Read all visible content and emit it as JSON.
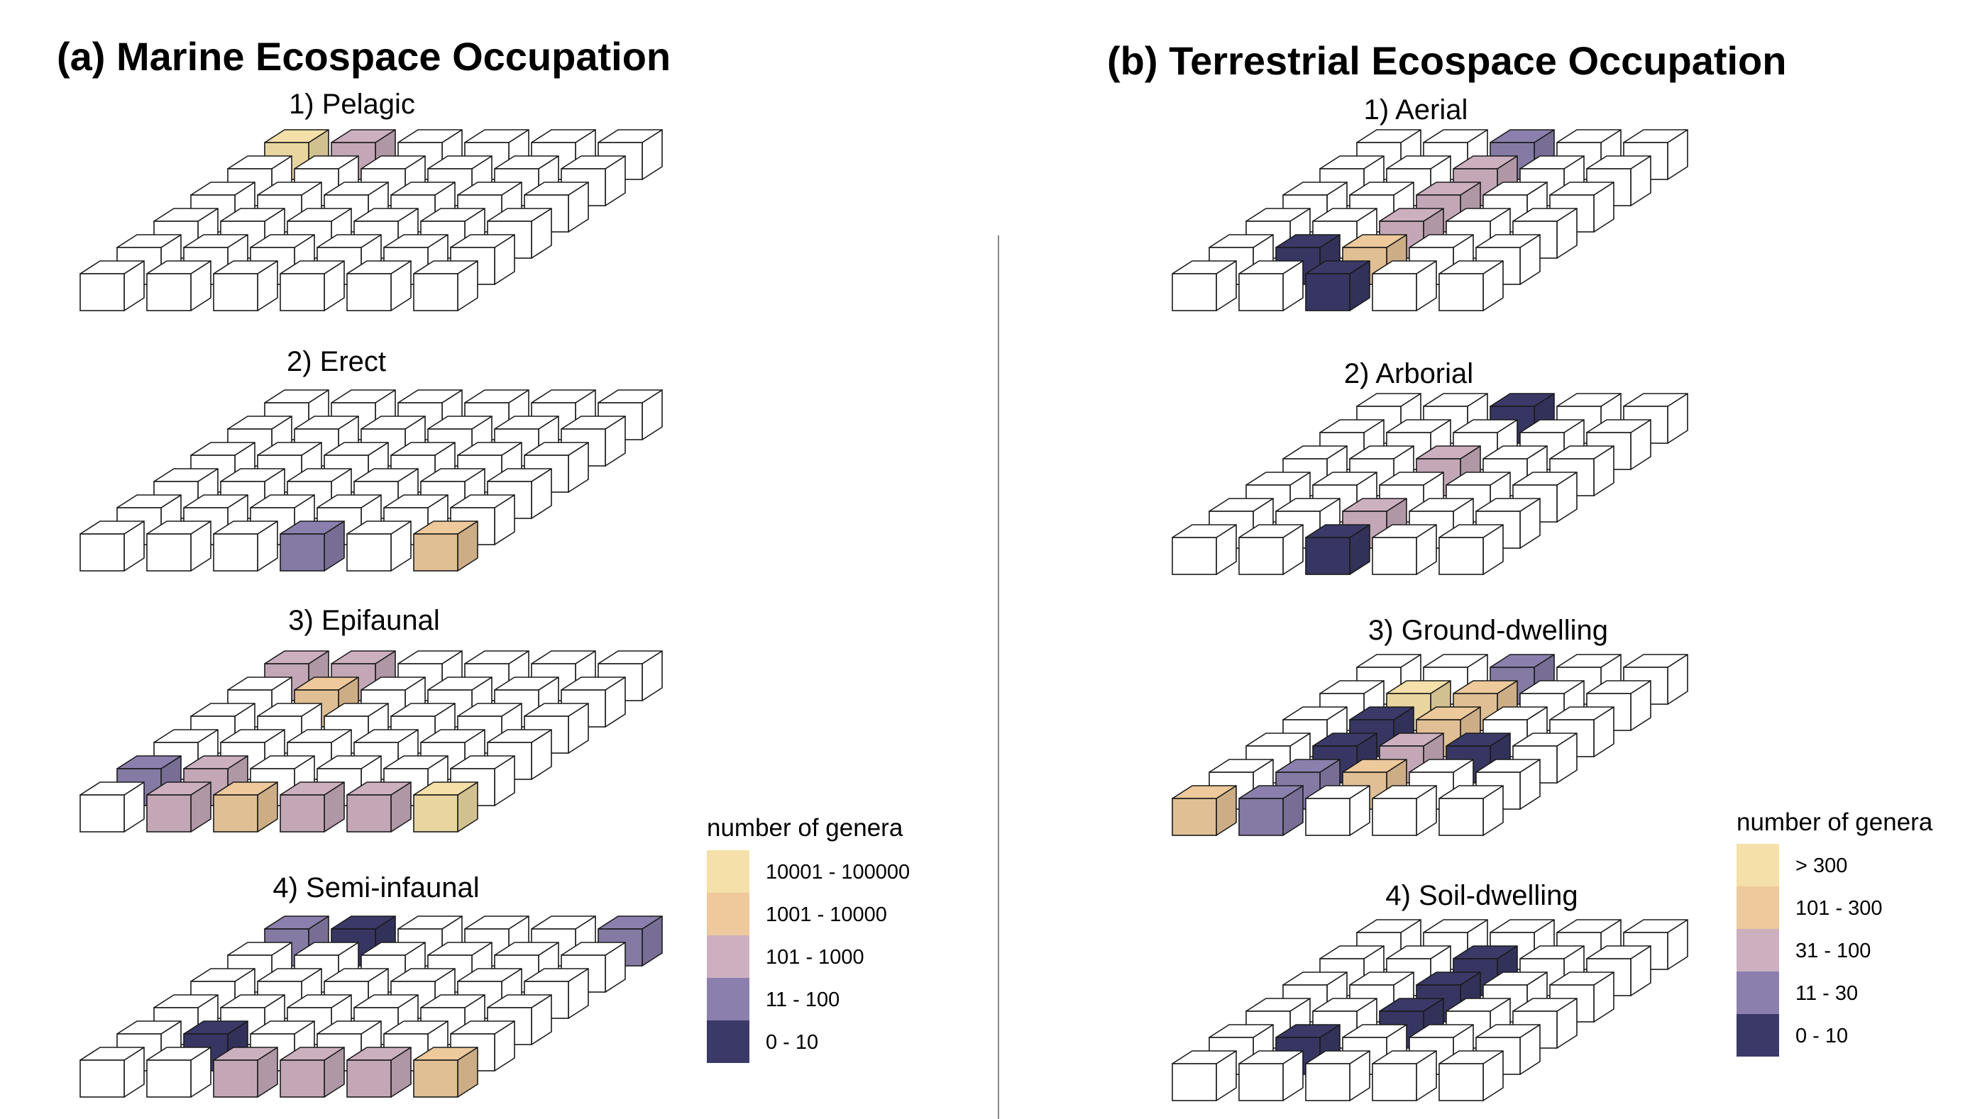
{
  "colors": {
    "c1": "#f4e0a8",
    "c2": "#edc99c",
    "c3": "#cdb0c0",
    "c4": "#8b80ad",
    "c5": "#3a3968",
    "empty": "#ffffff",
    "edge": "#1a1a1a",
    "divider": "#888888"
  },
  "panels": [
    {
      "id": "marine",
      "title": "(a) Marine Ecospace Occupation",
      "legend": {
        "title": "number of genera",
        "items": [
          {
            "label": "10001 - 100000",
            "color": "c1"
          },
          {
            "label": "1001 - 10000",
            "color": "c2"
          },
          {
            "label": "101 - 1000",
            "color": "c3"
          },
          {
            "label": "11 - 100",
            "color": "c4"
          },
          {
            "label": "0 - 10",
            "color": "c5"
          }
        ]
      },
      "grids": [
        {
          "title": "1) Pelagic",
          "rows": [
            [
              0,
              0,
              0,
              0,
              0,
              0
            ],
            [
              0,
              0,
              0,
              0,
              0,
              0
            ],
            [
              0,
              0,
              0,
              0,
              0,
              0
            ],
            [
              0,
              0,
              0,
              0,
              0,
              0
            ],
            [
              0,
              0,
              0,
              0,
              0,
              0
            ],
            [
              1,
              3,
              0,
              0,
              0,
              0
            ]
          ]
        },
        {
          "title": "2) Erect",
          "rows": [
            [
              0,
              0,
              0,
              4,
              0,
              2
            ],
            [
              0,
              0,
              0,
              0,
              0,
              0
            ],
            [
              0,
              0,
              0,
              0,
              0,
              0
            ],
            [
              0,
              0,
              0,
              0,
              0,
              0
            ],
            [
              0,
              0,
              0,
              0,
              0,
              0
            ],
            [
              0,
              0,
              0,
              0,
              0,
              0
            ]
          ]
        },
        {
          "title": "3) Epifaunal",
          "rows": [
            [
              0,
              3,
              2,
              3,
              3,
              1
            ],
            [
              4,
              3,
              0,
              0,
              0,
              0
            ],
            [
              0,
              0,
              0,
              0,
              0,
              0
            ],
            [
              0,
              0,
              0,
              0,
              0,
              0
            ],
            [
              0,
              2,
              0,
              0,
              0,
              0
            ],
            [
              3,
              3,
              0,
              0,
              0,
              0
            ]
          ]
        },
        {
          "title": "4) Semi-infaunal",
          "rows": [
            [
              0,
              0,
              3,
              3,
              3,
              2
            ],
            [
              0,
              5,
              0,
              0,
              0,
              0
            ],
            [
              0,
              0,
              0,
              0,
              0,
              0
            ],
            [
              0,
              0,
              0,
              0,
              0,
              0
            ],
            [
              0,
              0,
              0,
              0,
              0,
              0
            ],
            [
              4,
              5,
              0,
              0,
              0,
              4
            ]
          ]
        }
      ]
    },
    {
      "id": "terrestrial",
      "title": "(b) Terrestrial Ecospace Occupation",
      "legend": {
        "title": "number of genera",
        "items": [
          {
            "label": "> 300",
            "color": "c1"
          },
          {
            "label": "101 - 300",
            "color": "c2"
          },
          {
            "label": "31 - 100",
            "color": "c3"
          },
          {
            "label": "11 - 30",
            "color": "c4"
          },
          {
            "label": "0 - 10",
            "color": "c5"
          }
        ]
      },
      "grids": [
        {
          "title": "1) Aerial",
          "rows": [
            [
              0,
              0,
              5,
              0,
              0
            ],
            [
              0,
              5,
              2,
              0,
              0
            ],
            [
              0,
              0,
              3,
              0,
              0
            ],
            [
              0,
              0,
              3,
              0,
              0
            ],
            [
              0,
              0,
              3,
              0,
              0
            ],
            [
              0,
              0,
              4,
              0,
              0
            ]
          ]
        },
        {
          "title": "2) Arborial",
          "rows": [
            [
              0,
              0,
              5,
              0,
              0
            ],
            [
              0,
              0,
              3,
              0,
              0
            ],
            [
              0,
              0,
              0,
              0,
              0
            ],
            [
              0,
              0,
              3,
              0,
              0
            ],
            [
              0,
              0,
              0,
              0,
              0
            ],
            [
              0,
              0,
              5,
              0,
              0
            ]
          ]
        },
        {
          "title": "3) Ground-dwelling",
          "rows": [
            [
              2,
              4,
              0,
              0,
              0
            ],
            [
              0,
              4,
              2,
              0,
              0
            ],
            [
              0,
              5,
              3,
              5,
              0
            ],
            [
              0,
              5,
              2,
              0,
              0
            ],
            [
              0,
              1,
              2,
              0,
              0
            ],
            [
              0,
              0,
              4,
              0,
              0
            ]
          ]
        },
        {
          "title": "4) Soil-dwelling",
          "rows": [
            [
              0,
              0,
              0,
              0,
              0
            ],
            [
              0,
              5,
              0,
              0,
              0
            ],
            [
              0,
              0,
              5,
              0,
              0
            ],
            [
              0,
              0,
              5,
              0,
              0
            ],
            [
              0,
              0,
              5,
              0,
              0
            ],
            [
              0,
              0,
              0,
              0,
              0
            ]
          ]
        }
      ]
    }
  ]
}
